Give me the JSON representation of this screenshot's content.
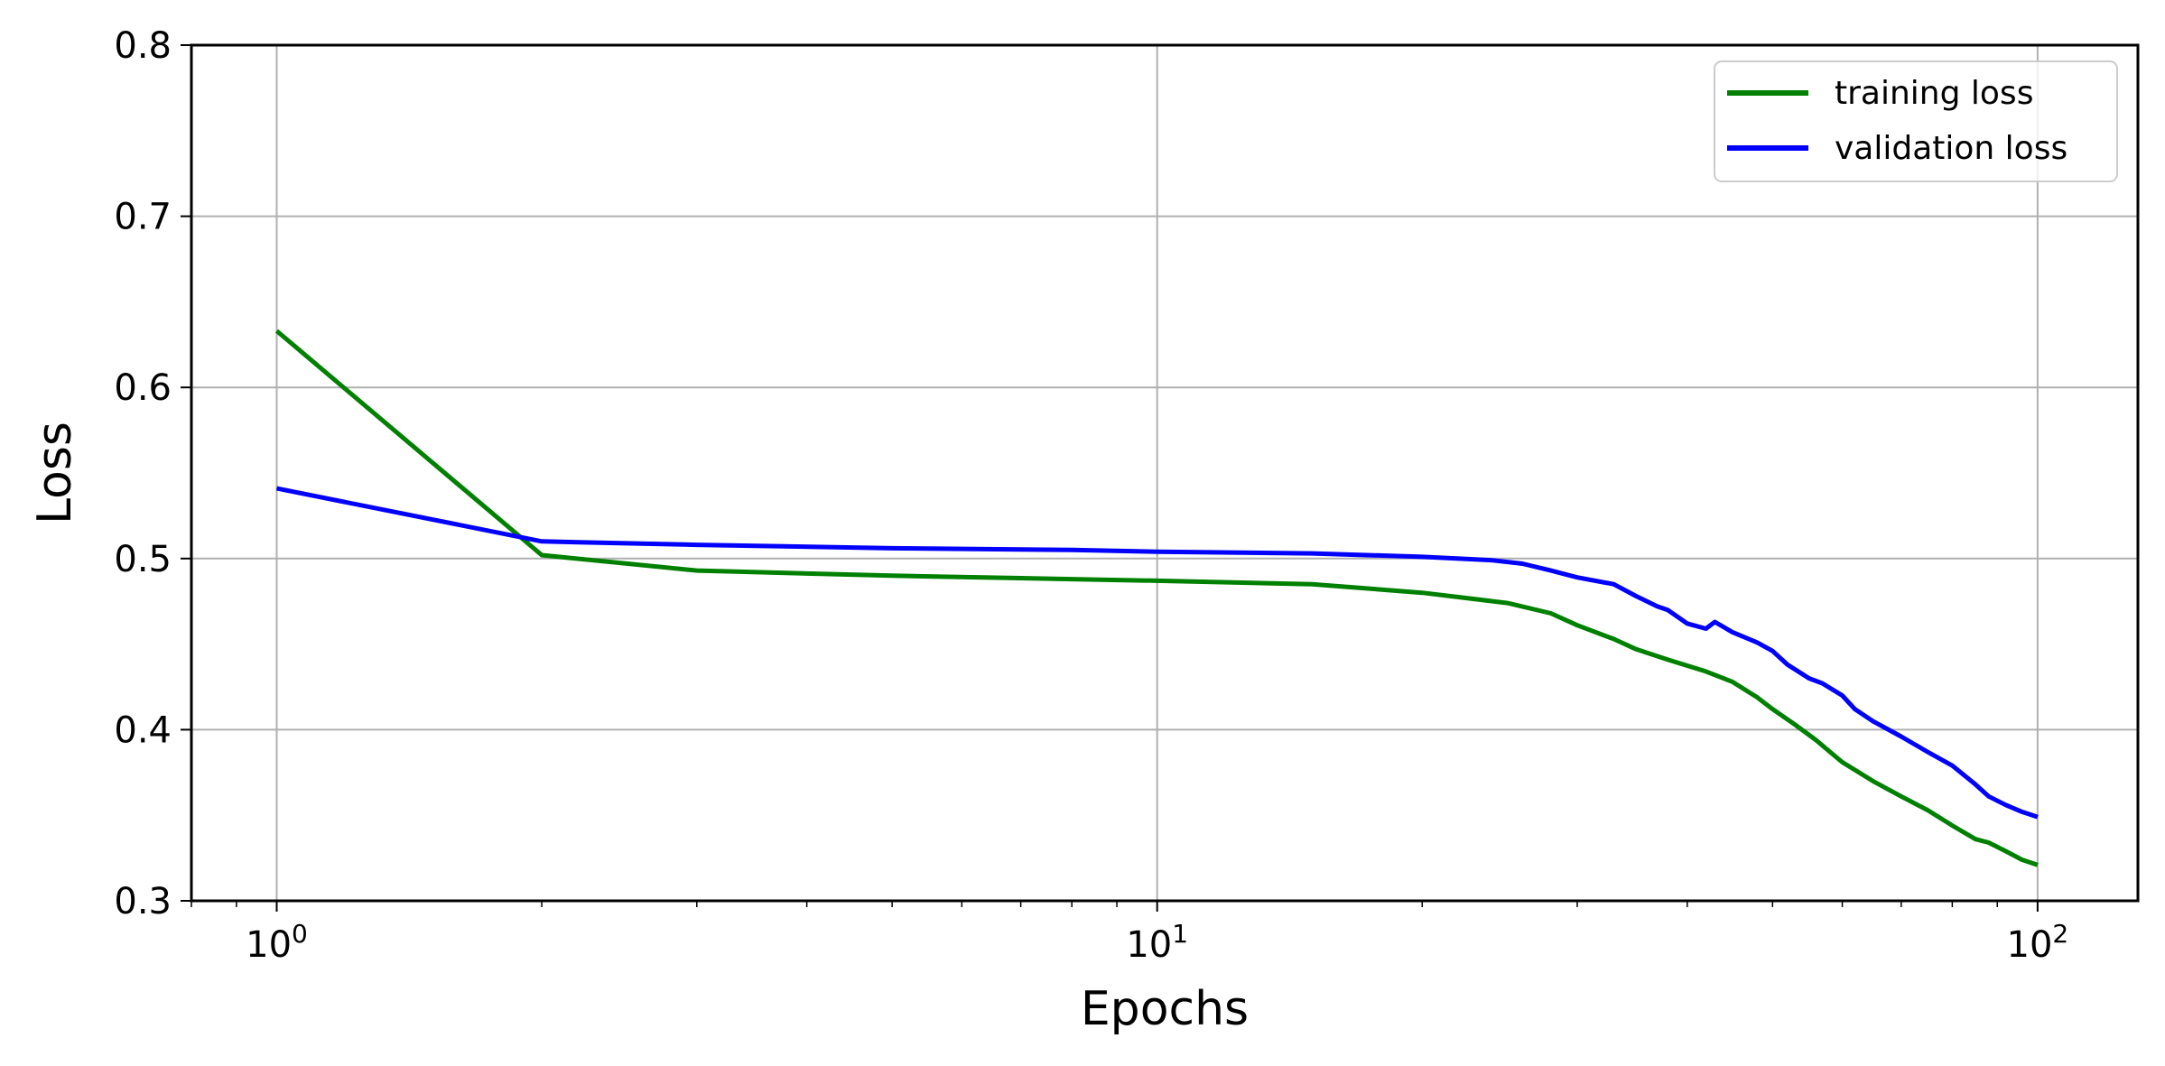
{
  "chart_data": {
    "type": "line",
    "title": "",
    "xlabel": "Epochs",
    "ylabel": "Loss",
    "xscale": "log",
    "xlim": [
      0.8,
      130
    ],
    "ylim": [
      0.3,
      0.8
    ],
    "grid": true,
    "legend_position": "top-right",
    "x_tick_labels": [
      {
        "value": 1,
        "base": "10",
        "exp": "0"
      },
      {
        "value": 10,
        "base": "10",
        "exp": "1"
      },
      {
        "value": 100,
        "base": "10",
        "exp": "2"
      }
    ],
    "y_ticks": [
      0.3,
      0.4,
      0.5,
      0.6,
      0.7,
      0.8
    ],
    "y_tick_labels": [
      "0.3",
      "0.4",
      "0.5",
      "0.6",
      "0.7",
      "0.8"
    ],
    "series": [
      {
        "name": "training loss",
        "color": "#008000",
        "points": [
          [
            1,
            0.633
          ],
          [
            2,
            0.502
          ],
          [
            3,
            0.493
          ],
          [
            5,
            0.49
          ],
          [
            8,
            0.488
          ],
          [
            10,
            0.487
          ],
          [
            15,
            0.485
          ],
          [
            20,
            0.48
          ],
          [
            25,
            0.474
          ],
          [
            28,
            0.468
          ],
          [
            30,
            0.461
          ],
          [
            33,
            0.453
          ],
          [
            35,
            0.447
          ],
          [
            38,
            0.441
          ],
          [
            42,
            0.434
          ],
          [
            45,
            0.428
          ],
          [
            48,
            0.419
          ],
          [
            50,
            0.412
          ],
          [
            53,
            0.403
          ],
          [
            56,
            0.394
          ],
          [
            60,
            0.381
          ],
          [
            65,
            0.37
          ],
          [
            70,
            0.361
          ],
          [
            75,
            0.353
          ],
          [
            80,
            0.344
          ],
          [
            85,
            0.336
          ],
          [
            88,
            0.334
          ],
          [
            92,
            0.329
          ],
          [
            96,
            0.324
          ],
          [
            100,
            0.321
          ]
        ]
      },
      {
        "name": "validation loss",
        "color": "#0000ff",
        "points": [
          [
            1,
            0.541
          ],
          [
            2,
            0.51
          ],
          [
            3,
            0.508
          ],
          [
            5,
            0.506
          ],
          [
            8,
            0.505
          ],
          [
            10,
            0.504
          ],
          [
            15,
            0.503
          ],
          [
            20,
            0.501
          ],
          [
            24,
            0.499
          ],
          [
            26,
            0.497
          ],
          [
            28,
            0.493
          ],
          [
            30,
            0.489
          ],
          [
            33,
            0.485
          ],
          [
            35,
            0.478
          ],
          [
            37,
            0.472
          ],
          [
            38,
            0.47
          ],
          [
            40,
            0.462
          ],
          [
            42,
            0.459
          ],
          [
            43,
            0.463
          ],
          [
            45,
            0.457
          ],
          [
            48,
            0.451
          ],
          [
            50,
            0.446
          ],
          [
            52,
            0.438
          ],
          [
            55,
            0.43
          ],
          [
            57,
            0.427
          ],
          [
            60,
            0.42
          ],
          [
            62,
            0.412
          ],
          [
            65,
            0.405
          ],
          [
            70,
            0.396
          ],
          [
            75,
            0.387
          ],
          [
            80,
            0.379
          ],
          [
            85,
            0.368
          ],
          [
            88,
            0.361
          ],
          [
            92,
            0.356
          ],
          [
            96,
            0.352
          ],
          [
            100,
            0.349
          ]
        ]
      }
    ]
  }
}
